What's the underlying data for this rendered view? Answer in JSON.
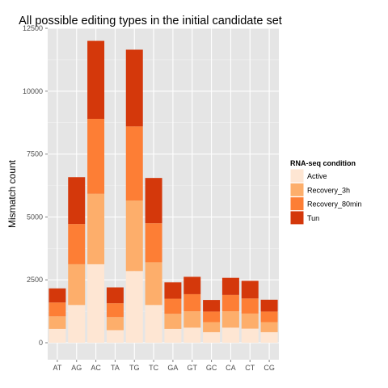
{
  "chart_data": {
    "type": "bar",
    "stacked": true,
    "title": "All possible editing types in the initial candidate set",
    "xlabel": "",
    "ylabel": "Mismatch count",
    "ylim": [
      0,
      12500
    ],
    "yticks": [
      0,
      2500,
      5000,
      7500,
      10000,
      12500
    ],
    "grid": true,
    "legend_position": "right",
    "legend_title": "RNA-seq condition",
    "categories": [
      "AT",
      "AG",
      "AC",
      "TA",
      "TG",
      "TC",
      "GA",
      "GT",
      "GC",
      "CA",
      "CT",
      "CG"
    ],
    "series": [
      {
        "name": "Active",
        "color": "#fee6d3",
        "values": [
          550,
          1500,
          3120,
          500,
          2850,
          1500,
          550,
          600,
          420,
          600,
          560,
          420
        ]
      },
      {
        "name": "Recovery_3h",
        "color": "#fdae6b",
        "values": [
          500,
          1620,
          2800,
          520,
          2800,
          1700,
          600,
          650,
          400,
          650,
          600,
          400
        ]
      },
      {
        "name": "Recovery_80min",
        "color": "#fd7e35",
        "values": [
          550,
          1600,
          2980,
          550,
          2950,
          1550,
          600,
          680,
          420,
          650,
          600,
          420
        ]
      },
      {
        "name": "Tun",
        "color": "#d4380b",
        "values": [
          560,
          1860,
          3100,
          630,
          3050,
          1800,
          650,
          690,
          460,
          680,
          700,
          470
        ]
      }
    ]
  }
}
